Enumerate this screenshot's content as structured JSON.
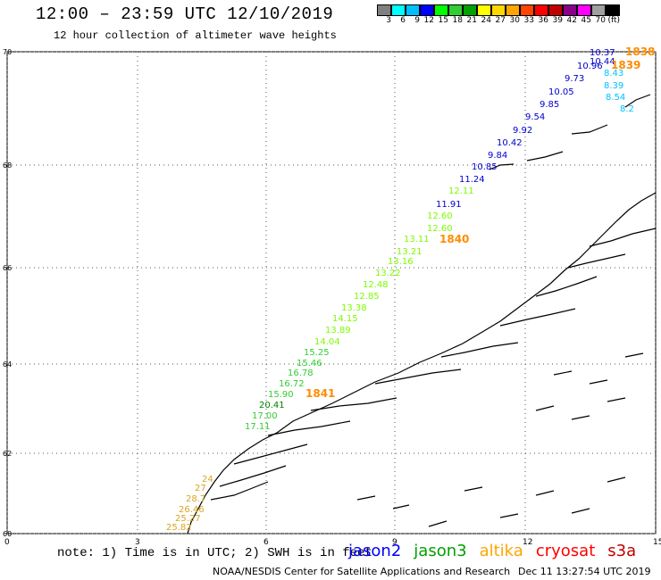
{
  "title": "12:00 – 23:59 UTC 12/10/2019",
  "subtitle": "12 hour collection of altimeter wave heights",
  "legend": {
    "colors": [
      "#7f7f7f",
      "#00ffff",
      "#00bfff",
      "#0000ff",
      "#00ff00",
      "#32cd32",
      "#00a000",
      "#ffff00",
      "#ffd700",
      "#ffa500",
      "#ff4500",
      "#ff0000",
      "#c00000",
      "#8b008b",
      "#ff00ff",
      "#a0a0a0",
      "#000000"
    ],
    "labels": [
      "3",
      "6",
      "9",
      "12",
      "15",
      "18",
      "21",
      "24",
      "27",
      "30",
      "33",
      "36",
      "39",
      "42",
      "45",
      "70",
      "(ft)"
    ]
  },
  "axes": {
    "lat_ticks": [
      "70",
      "68",
      "66",
      "64",
      "62",
      "60"
    ],
    "lon_ticks": [
      "0",
      "3",
      "6",
      "9",
      "12",
      "15"
    ]
  },
  "passes": [
    {
      "id": "1838",
      "color": "#ff8c00"
    },
    {
      "id": "1839",
      "color": "#ff8c00"
    },
    {
      "id": "1840",
      "color": "#ff8c00"
    },
    {
      "id": "1841",
      "color": "#ff8c00"
    }
  ],
  "wave_heights": [
    {
      "v": "10.37",
      "c": "#0000cd"
    },
    {
      "v": "10.44",
      "c": "#0000cd"
    },
    {
      "v": "10.96",
      "c": "#0000cd"
    },
    {
      "v": "9.73",
      "c": "#0000cd"
    },
    {
      "v": "10.05",
      "c": "#0000cd"
    },
    {
      "v": "9.85",
      "c": "#0000cd"
    },
    {
      "v": "9.54",
      "c": "#0000cd"
    },
    {
      "v": "9.92",
      "c": "#0000cd"
    },
    {
      "v": "10.42",
      "c": "#0000cd"
    },
    {
      "v": "9.84",
      "c": "#0000cd"
    },
    {
      "v": "10.85",
      "c": "#0000cd"
    },
    {
      "v": "11.24",
      "c": "#0000cd"
    },
    {
      "v": "11.91",
      "c": "#0000cd"
    },
    {
      "v": "12.11",
      "c": "#7cfc00"
    },
    {
      "v": "12.60",
      "c": "#7cfc00"
    },
    {
      "v": "12.60",
      "c": "#7cfc00"
    },
    {
      "v": "13.11",
      "c": "#7cfc00"
    },
    {
      "v": "13.21",
      "c": "#7cfc00"
    },
    {
      "v": "13.16",
      "c": "#7cfc00"
    },
    {
      "v": "13.22",
      "c": "#7cfc00"
    },
    {
      "v": "12.48",
      "c": "#7cfc00"
    },
    {
      "v": "12.85",
      "c": "#7cfc00"
    },
    {
      "v": "13.38",
      "c": "#7cfc00"
    },
    {
      "v": "14.15",
      "c": "#7cfc00"
    },
    {
      "v": "13.89",
      "c": "#7cfc00"
    },
    {
      "v": "14.04",
      "c": "#7cfc00"
    },
    {
      "v": "15.25",
      "c": "#32cd32"
    },
    {
      "v": "15.46",
      "c": "#32cd32"
    },
    {
      "v": "16.78",
      "c": "#32cd32"
    },
    {
      "v": "16.72",
      "c": "#32cd32"
    },
    {
      "v": "15.90",
      "c": "#32cd32"
    },
    {
      "v": "20.41",
      "c": "#008000"
    },
    {
      "v": "17.00",
      "c": "#32cd32"
    },
    {
      "v": "17.11",
      "c": "#32cd32"
    },
    {
      "v": "8.43",
      "c": "#00bfff"
    },
    {
      "v": "8.39",
      "c": "#00bfff"
    },
    {
      "v": "8.54",
      "c": "#00bfff"
    },
    {
      "v": "8.2",
      "c": "#00bfff"
    },
    {
      "v": "26.46",
      "c": "#daa520"
    },
    {
      "v": "25.27",
      "c": "#daa520"
    },
    {
      "v": "25.82",
      "c": "#daa520"
    },
    {
      "v": "28.7",
      "c": "#daa520"
    },
    {
      "v": "27",
      "c": "#daa520"
    },
    {
      "v": "24",
      "c": "#daa520"
    }
  ],
  "note": "note: 1) Time is in UTC; 2) SWH is in feet",
  "satellites": [
    {
      "name": "jason2",
      "color": "#0000ff"
    },
    {
      "name": "jason3",
      "color": "#00a000"
    },
    {
      "name": "altika",
      "color": "#ffa500"
    },
    {
      "name": "cryosat",
      "color": "#ff0000"
    },
    {
      "name": "s3a",
      "color": "#c00000"
    }
  ],
  "credit": "NOAA/NESDIS Center for Satellite Applications and Research",
  "timestamp": "Dec 11 13:27:54 UTC 2019"
}
